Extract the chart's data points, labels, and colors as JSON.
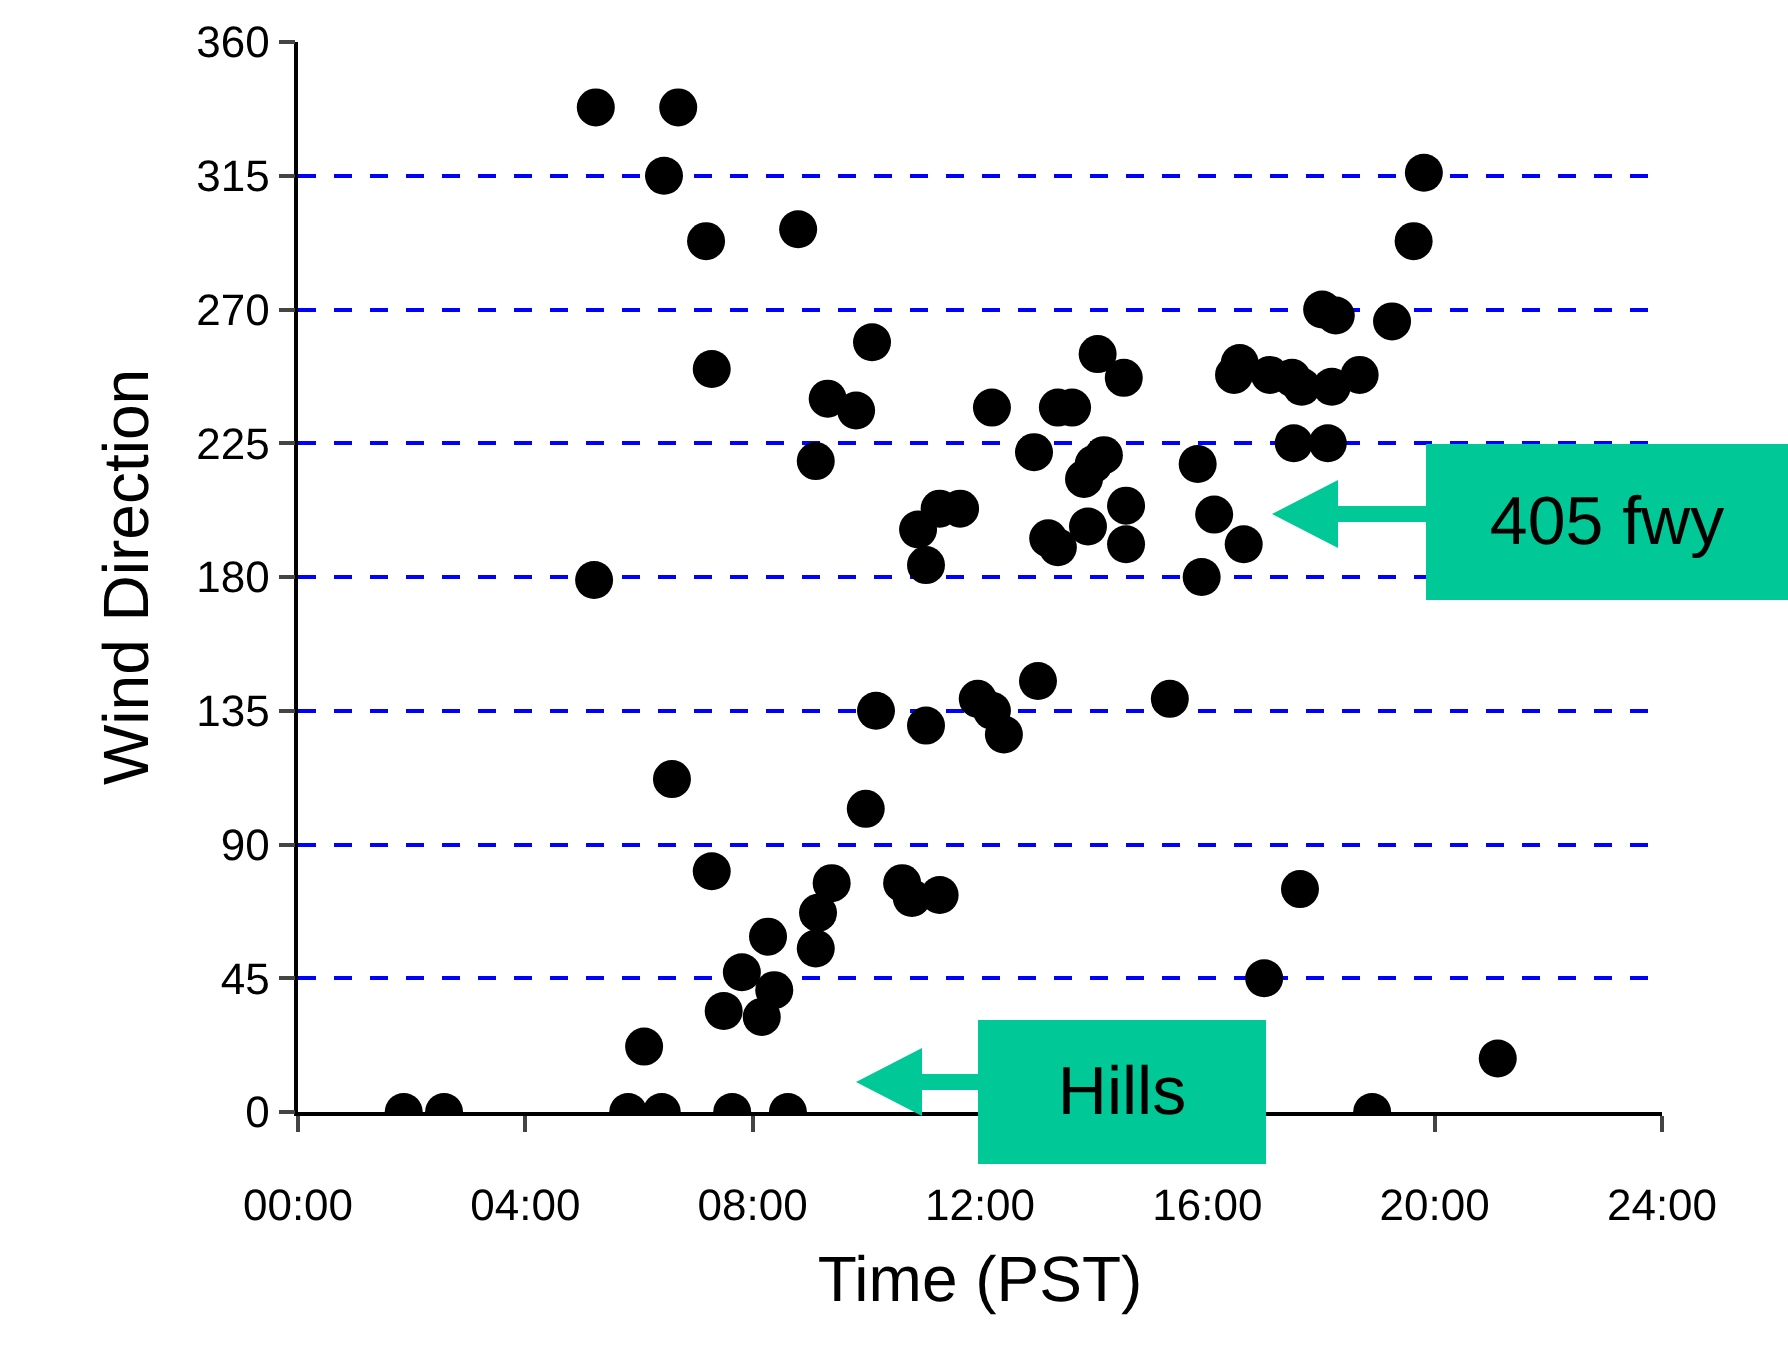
{
  "chart_data": {
    "type": "scatter",
    "xlabel": "Time (PST)",
    "ylabel": "Wind Direction",
    "x": [
      1.86,
      2.57,
      5.21,
      5.24,
      6.69,
      6.44,
      7.18,
      7.28,
      8.8,
      6.58,
      7.28,
      5.81,
      6.4,
      7.64,
      8.62,
      6.09,
      7.49,
      7.81,
      8.16,
      8.27,
      8.38,
      9.11,
      9.15,
      9.39,
      9.11,
      9.32,
      9.82,
      10.1,
      9.99,
      10.17,
      10.63,
      10.8,
      11.29,
      11.05,
      10.91,
      11.05,
      11.29,
      11.65,
      11.96,
      12.21,
      12.21,
      12.42,
      12.95,
      13.02,
      13.2,
      13.37,
      13.37,
      13.62,
      13.83,
      14.0,
      14.18,
      13.9,
      14.07,
      14.53,
      14.57,
      14.57,
      15.34,
      15.83,
      15.9,
      16.12,
      16.47,
      16.57,
      16.64,
      17.0,
      17.1,
      17.49,
      17.52,
      17.66,
      17.63,
      18.02,
      18.26,
      18.12,
      18.19,
      18.68,
      18.9,
      19.25,
      19.63,
      19.81,
      21.11
    ],
    "values": [
      0,
      0,
      179,
      338,
      338,
      315,
      293,
      250,
      297,
      112,
      81,
      0,
      0,
      0,
      0,
      22,
      34,
      47,
      32,
      59,
      41,
      55,
      67,
      77,
      219,
      240,
      236,
      259,
      102,
      135,
      77,
      72,
      73,
      130,
      196,
      184,
      203,
      203,
      139,
      135,
      237,
      127,
      222,
      145,
      193,
      190,
      237,
      237,
      213,
      218,
      221,
      197,
      255,
      247,
      204,
      191,
      139,
      218,
      180,
      201,
      248,
      252,
      191,
      45,
      248,
      247,
      225,
      244,
      75,
      270,
      268,
      225,
      244,
      248,
      0,
      266,
      293,
      316,
      18
    ],
    "color": "#000000",
    "marker": "circle",
    "xlim": [
      0,
      24
    ],
    "xticks": [
      {
        "value": 0,
        "label": "00:00"
      },
      {
        "value": 4,
        "label": "04:00"
      },
      {
        "value": 8,
        "label": "08:00"
      },
      {
        "value": 12,
        "label": "12:00"
      },
      {
        "value": 16,
        "label": "16:00"
      },
      {
        "value": 20,
        "label": "20:00"
      },
      {
        "value": 24,
        "label": "24:00"
      }
    ],
    "ylim": [
      0,
      360
    ],
    "yticks": [
      0,
      45,
      90,
      135,
      180,
      225,
      270,
      315,
      360
    ],
    "grid": "y",
    "annotations": [
      "405 fwy",
      "Hills"
    ]
  }
}
